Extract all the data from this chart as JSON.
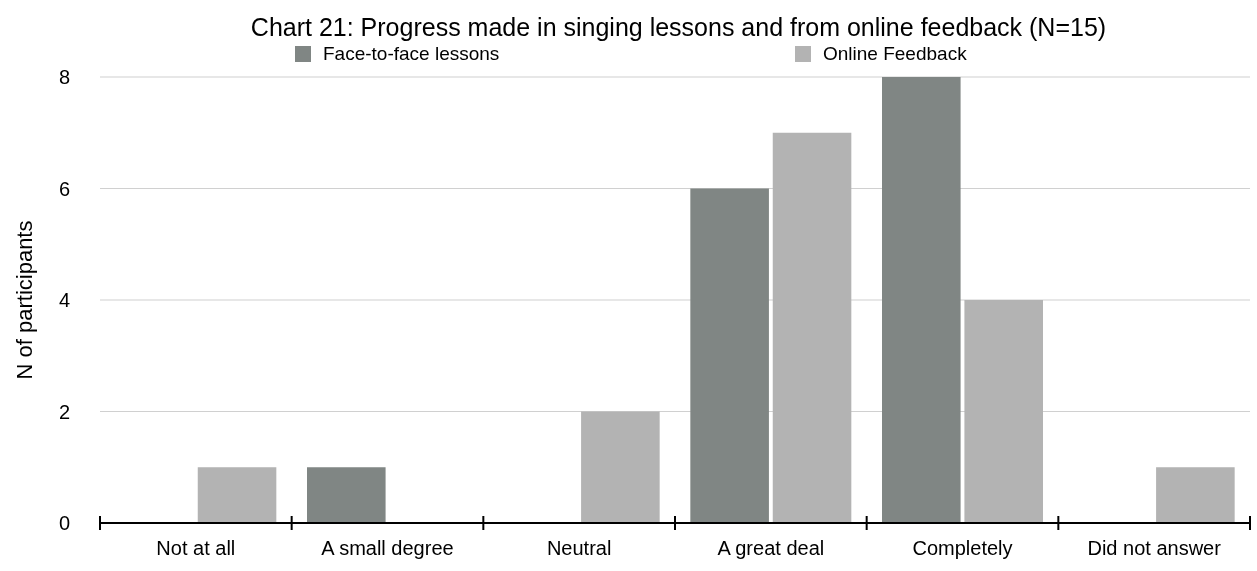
{
  "chart_data": {
    "type": "bar",
    "title": "Chart 21: Progress made in singing lessons and from online feedback (N=15)",
    "ylabel": "N of participants",
    "categories": [
      "Not at all",
      "A small degree",
      "Neutral",
      "A great deal",
      "Completely",
      "Did not answer"
    ],
    "series": [
      {
        "name": "Face-to-face lessons",
        "color": "#808684",
        "values": [
          0,
          1,
          0,
          6,
          8,
          0
        ]
      },
      {
        "name": "Online Feedback",
        "color": "#b3b3b3",
        "values": [
          1,
          0,
          2,
          7,
          4,
          1
        ]
      }
    ],
    "ylim": [
      0,
      8
    ],
    "yticks": [
      0,
      2,
      4,
      6,
      8
    ],
    "grid": "y",
    "legend": "top"
  }
}
